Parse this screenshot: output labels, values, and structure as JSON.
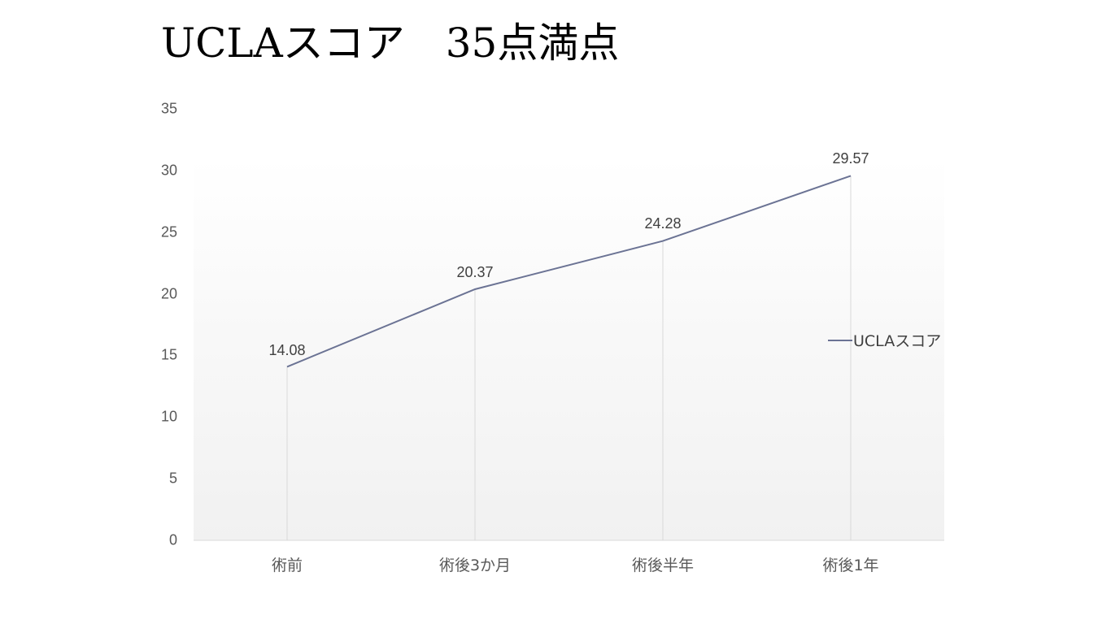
{
  "slide": {
    "title": "UCLAスコア　35点満点"
  },
  "colors": {
    "series_line": "#6b7394",
    "gridline": "#d9d9d9",
    "axis_text": "#595959",
    "label_text": "#404040"
  },
  "chart_data": {
    "type": "line",
    "title": "UCLAスコア　35点満点",
    "xlabel": "",
    "ylabel": "",
    "categories": [
      "術前",
      "術後3か月",
      "術後半年",
      "術後1年"
    ],
    "series": [
      {
        "name": "UCLAスコア",
        "values": [
          14.08,
          20.37,
          24.28,
          29.57
        ],
        "color": "#6b7394"
      }
    ],
    "data_labels": [
      "14.08",
      "20.37",
      "24.28",
      "29.57"
    ],
    "yticks": [
      "0",
      "5",
      "10",
      "15",
      "20",
      "25",
      "30",
      "35"
    ],
    "ylim": [
      0,
      35
    ],
    "grid": "vertical drop lines at categories",
    "legend_position": "right"
  },
  "legend": {
    "label": "UCLAスコア"
  }
}
